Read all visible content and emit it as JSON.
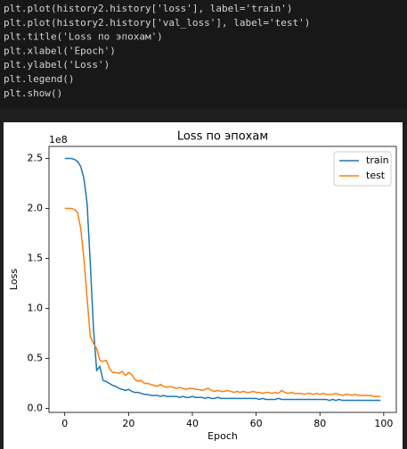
{
  "code": [
    "plt.plot(history2.history['loss'], label='train')",
    "plt.plot(history2.history['val_loss'], label='test')",
    "plt.title('Loss по эпохам')",
    "plt.xlabel('Epoch')",
    "plt.ylabel('Loss')",
    "plt.legend()",
    "plt.show()"
  ],
  "chart_data": {
    "type": "line",
    "title": "Loss по эпохам",
    "x_label": "Epoch",
    "y_label": "Loss",
    "y_offset_text": "1e8",
    "x": [
      0,
      1,
      2,
      3,
      4,
      5,
      6,
      7,
      8,
      9,
      10,
      11,
      12,
      13,
      14,
      15,
      16,
      17,
      18,
      19,
      20,
      21,
      22,
      23,
      24,
      25,
      26,
      27,
      28,
      29,
      30,
      31,
      32,
      33,
      34,
      35,
      36,
      37,
      38,
      39,
      40,
      41,
      42,
      43,
      44,
      45,
      46,
      47,
      48,
      49,
      50,
      51,
      52,
      53,
      54,
      55,
      56,
      57,
      58,
      59,
      60,
      61,
      62,
      63,
      64,
      65,
      66,
      67,
      68,
      69,
      70,
      71,
      72,
      73,
      74,
      75,
      76,
      77,
      78,
      79,
      80,
      81,
      82,
      83,
      84,
      85,
      86,
      87,
      88,
      89,
      90,
      91,
      92,
      93,
      94,
      95,
      96,
      97,
      98,
      99
    ],
    "series": [
      {
        "name": "train",
        "color": "#1f77b4",
        "values": [
          2.5,
          2.5,
          2.5,
          2.49,
          2.47,
          2.42,
          2.3,
          2.05,
          1.45,
          0.8,
          0.38,
          0.42,
          0.28,
          0.27,
          0.25,
          0.23,
          0.22,
          0.2,
          0.19,
          0.18,
          0.19,
          0.17,
          0.16,
          0.16,
          0.15,
          0.14,
          0.14,
          0.13,
          0.13,
          0.13,
          0.12,
          0.13,
          0.12,
          0.12,
          0.12,
          0.12,
          0.11,
          0.12,
          0.11,
          0.11,
          0.12,
          0.11,
          0.11,
          0.11,
          0.1,
          0.11,
          0.1,
          0.1,
          0.11,
          0.1,
          0.1,
          0.1,
          0.1,
          0.1,
          0.1,
          0.1,
          0.1,
          0.1,
          0.1,
          0.1,
          0.1,
          0.09,
          0.1,
          0.09,
          0.09,
          0.09,
          0.09,
          0.1,
          0.09,
          0.09,
          0.09,
          0.09,
          0.09,
          0.09,
          0.09,
          0.09,
          0.09,
          0.09,
          0.09,
          0.09,
          0.09,
          0.09,
          0.09,
          0.08,
          0.09,
          0.08,
          0.09,
          0.08,
          0.08,
          0.08,
          0.08,
          0.08,
          0.08,
          0.08,
          0.08,
          0.08,
          0.08,
          0.08,
          0.08,
          0.08
        ]
      },
      {
        "name": "test",
        "color": "#ff7f0e",
        "values": [
          2.0,
          2.0,
          2.0,
          1.99,
          1.96,
          1.8,
          1.5,
          1.1,
          0.72,
          0.65,
          0.6,
          0.48,
          0.47,
          0.48,
          0.4,
          0.36,
          0.36,
          0.35,
          0.37,
          0.33,
          0.36,
          0.34,
          0.29,
          0.27,
          0.28,
          0.25,
          0.25,
          0.24,
          0.23,
          0.22,
          0.24,
          0.22,
          0.21,
          0.22,
          0.21,
          0.2,
          0.21,
          0.2,
          0.19,
          0.2,
          0.2,
          0.19,
          0.19,
          0.18,
          0.19,
          0.2,
          0.18,
          0.17,
          0.18,
          0.17,
          0.17,
          0.18,
          0.17,
          0.16,
          0.17,
          0.16,
          0.17,
          0.16,
          0.16,
          0.17,
          0.16,
          0.16,
          0.15,
          0.16,
          0.16,
          0.15,
          0.16,
          0.15,
          0.18,
          0.16,
          0.15,
          0.16,
          0.15,
          0.15,
          0.15,
          0.14,
          0.15,
          0.15,
          0.14,
          0.15,
          0.14,
          0.15,
          0.14,
          0.14,
          0.14,
          0.15,
          0.14,
          0.13,
          0.14,
          0.14,
          0.13,
          0.14,
          0.13,
          0.13,
          0.13,
          0.13,
          0.13,
          0.12,
          0.12,
          0.12
        ]
      }
    ],
    "xlim": [
      -4.95,
      103.95
    ],
    "xticks": [
      0,
      20,
      40,
      60,
      80,
      100
    ],
    "ylim": [
      -0.04,
      2.62
    ],
    "yticks": [
      {
        "value": 0,
        "label": "0.0"
      },
      0.5,
      {
        "value": 1,
        "label": "1.0"
      },
      1.5,
      {
        "value": 2,
        "label": "2.0"
      },
      2.5
    ],
    "grid": false,
    "legend": "upper right"
  }
}
